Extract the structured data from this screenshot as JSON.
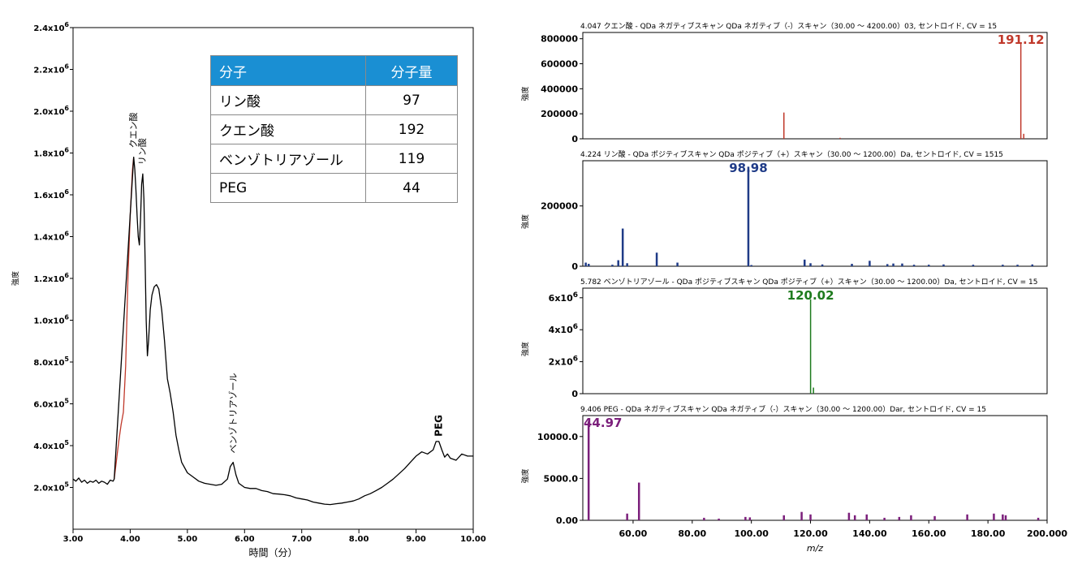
{
  "chart_data": [
    {
      "type": "line",
      "xlabel": "時間（分）",
      "ylabel": "強度",
      "xlim": [
        3.0,
        10.0
      ],
      "ylim": [
        0,
        2400000
      ],
      "xticks": [
        "3.00",
        "4.00",
        "5.00",
        "6.00",
        "7.00",
        "8.00",
        "9.00",
        "10.00"
      ],
      "yticks": [
        {
          "mant": "2.0x10",
          "exp": "5",
          "value": 200000
        },
        {
          "mant": "4.0x10",
          "exp": "5",
          "value": 400000
        },
        {
          "mant": "6.0x10",
          "exp": "5",
          "value": 600000
        },
        {
          "mant": "8.0x10",
          "exp": "5",
          "value": 800000
        },
        {
          "mant": "1.0x10",
          "exp": "6",
          "value": 1000000
        },
        {
          "mant": "1.2x10",
          "exp": "6",
          "value": 1200000
        },
        {
          "mant": "1.4x10",
          "exp": "6",
          "value": 1400000
        },
        {
          "mant": "1.6x10",
          "exp": "6",
          "value": 1600000
        },
        {
          "mant": "1.8x10",
          "exp": "6",
          "value": 1800000
        },
        {
          "mant": "2.0x10",
          "exp": "6",
          "value": 2000000
        },
        {
          "mant": "2.2x10",
          "exp": "6",
          "value": 2200000
        },
        {
          "mant": "2.4x10",
          "exp": "6",
          "value": 2400000
        }
      ],
      "series": [
        {
          "color": "#c0392b",
          "x": [
            3.72,
            3.76,
            3.8,
            3.84,
            3.88,
            3.92,
            3.96,
            4.0,
            4.04,
            4.06
          ],
          "y": [
            240000,
            330000,
            420000,
            500000,
            560000,
            780000,
            1200000,
            1500000,
            1720000,
            1780000
          ]
        },
        {
          "color": "#000000",
          "x": [
            3.0,
            3.05,
            3.1,
            3.15,
            3.2,
            3.25,
            3.3,
            3.35,
            3.4,
            3.45,
            3.5,
            3.55,
            3.6,
            3.65,
            3.7,
            3.72,
            4.06,
            4.08,
            4.1,
            4.12,
            4.14,
            4.16,
            4.18,
            4.2,
            4.22,
            4.24,
            4.26,
            4.28,
            4.3,
            4.32,
            4.35,
            4.38,
            4.42,
            4.46,
            4.5,
            4.55,
            4.6,
            4.65,
            4.7,
            4.75,
            4.8,
            4.85,
            4.9,
            5.0,
            5.1,
            5.2,
            5.3,
            5.4,
            5.5,
            5.6,
            5.7,
            5.75,
            5.8,
            5.85,
            5.9,
            6.0,
            6.1,
            6.2,
            6.3,
            6.4,
            6.5,
            6.6,
            6.7,
            6.8,
            6.9,
            7.0,
            7.1,
            7.2,
            7.3,
            7.4,
            7.5,
            7.6,
            7.7,
            7.8,
            7.9,
            8.0,
            8.1,
            8.2,
            8.3,
            8.4,
            8.5,
            8.6,
            8.7,
            8.8,
            8.9,
            9.0,
            9.1,
            9.2,
            9.3,
            9.35,
            9.4,
            9.45,
            9.5,
            9.55,
            9.6,
            9.7,
            9.8,
            9.9,
            10.0
          ],
          "y": [
            240000,
            230000,
            245000,
            225000,
            235000,
            220000,
            230000,
            225000,
            235000,
            220000,
            230000,
            225000,
            215000,
            235000,
            230000,
            240000,
            1780000,
            1720000,
            1620000,
            1500000,
            1400000,
            1360000,
            1480000,
            1650000,
            1700000,
            1580000,
            1300000,
            1000000,
            830000,
            900000,
            1050000,
            1120000,
            1160000,
            1170000,
            1150000,
            1050000,
            900000,
            720000,
            650000,
            560000,
            450000,
            380000,
            320000,
            270000,
            250000,
            230000,
            220000,
            215000,
            210000,
            215000,
            240000,
            300000,
            320000,
            260000,
            220000,
            200000,
            195000,
            195000,
            185000,
            180000,
            170000,
            168000,
            165000,
            160000,
            150000,
            145000,
            140000,
            130000,
            125000,
            120000,
            118000,
            122000,
            125000,
            130000,
            135000,
            145000,
            160000,
            170000,
            185000,
            200000,
            220000,
            240000,
            265000,
            290000,
            320000,
            350000,
            370000,
            360000,
            380000,
            420000,
            420000,
            380000,
            345000,
            360000,
            340000,
            330000,
            360000,
            350000,
            350000
          ]
        }
      ],
      "annotations": [
        {
          "text": "クエン酸",
          "x": 4.05,
          "y": 1800000
        },
        {
          "text": "リン酸",
          "x": 4.21,
          "y": 1720000
        },
        {
          "text": "ベンゾトリアゾール",
          "x": 5.8,
          "y": 340000
        },
        {
          "text": "PEG",
          "x": 9.4,
          "y": 420000
        }
      ]
    },
    {
      "type": "bar",
      "title": "4.047 クエン酸 - QDa ネガティブスキャン QDa ネガティブ（-）スキャン（30.00 ～ 4200.00）03, セントロイド, CV = 15",
      "ylabel": "強度",
      "color": "#c0392b",
      "xlim": [
        43,
        200
      ],
      "ylim": [
        0,
        850000
      ],
      "yticks": [
        {
          "label": "0",
          "value": 0
        },
        {
          "label": "200000",
          "value": 200000
        },
        {
          "label": "400000",
          "value": 400000
        },
        {
          "label": "600000",
          "value": 600000
        },
        {
          "label": "800000",
          "value": 800000
        }
      ],
      "peaks": [
        [
          111.0,
          210000
        ],
        [
          130.0,
          8000
        ],
        [
          191.12,
          760000
        ],
        [
          192.1,
          40000
        ]
      ],
      "label": "191.12",
      "label_mz": 191.12,
      "label_y": 760000
    },
    {
      "type": "bar",
      "title": "4.224 リン酸 - QDa ポジティブスキャン QDa ポジティブ（+）スキャン（30.00 ～ 1200.00）Da, セントロイド, CV = 1515",
      "ylabel": "強度",
      "color": "#1f3b87",
      "xlim": [
        43,
        200
      ],
      "ylim": [
        0,
        350000
      ],
      "yticks": [
        {
          "label": "0",
          "value": 0
        },
        {
          "label": "200000",
          "value": 200000
        }
      ],
      "peaks": [
        [
          44.0,
          12000
        ],
        [
          45.0,
          8000
        ],
        [
          53.0,
          5000
        ],
        [
          55.0,
          20000
        ],
        [
          56.5,
          125000
        ],
        [
          58.0,
          10000
        ],
        [
          68.0,
          45000
        ],
        [
          75.0,
          12000
        ],
        [
          98.98,
          330000
        ],
        [
          100.0,
          4000
        ],
        [
          118.0,
          22000
        ],
        [
          120.0,
          10000
        ],
        [
          124.0,
          6000
        ],
        [
          134.0,
          8000
        ],
        [
          140.0,
          18000
        ],
        [
          146.0,
          7000
        ],
        [
          148.0,
          9000
        ],
        [
          151.0,
          9000
        ],
        [
          155.0,
          5000
        ],
        [
          160.0,
          5000
        ],
        [
          165.0,
          6000
        ],
        [
          175.0,
          5000
        ],
        [
          185.0,
          5000
        ],
        [
          190.0,
          5000
        ],
        [
          195.0,
          6000
        ]
      ],
      "label": "98.98",
      "label_mz": 98.98,
      "label_y": 330000
    },
    {
      "type": "bar",
      "title": "5.782 ベンゾトリアゾール - QDa ポジティブスキャン QDa ポジティブ（+）スキャン（30.00 ～ 1200.00）Da, セントロイド, CV = 15",
      "ylabel": "強度",
      "color": "#1e7b1e",
      "xlim": [
        43,
        200
      ],
      "ylim": [
        0,
        6600000
      ],
      "yticks": [
        {
          "label": "0",
          "value": 0,
          "exp": ""
        },
        {
          "label": "2x10",
          "value": 2000000,
          "exp": "6"
        },
        {
          "label": "4x10",
          "value": 4000000,
          "exp": "6"
        },
        {
          "label": "6x10",
          "value": 6000000,
          "exp": "6"
        }
      ],
      "peaks": [
        [
          120.02,
          5900000
        ],
        [
          121.0,
          380000
        ]
      ],
      "label": "120.02",
      "label_mz": 120.02,
      "label_y": 5900000
    },
    {
      "type": "bar",
      "title": "9.406 PEG - QDa ネガティブスキャン QDa ネガティブ（-）スキャン（30.00 ～ 1200.00）Dar, セントロイド, CV = 15",
      "ylabel": "強度",
      "xlabel": "m/z",
      "color": "#7b1f7b",
      "xlim": [
        43,
        200
      ],
      "ylim": [
        0,
        12500
      ],
      "xticks": [
        "60.00",
        "80.00",
        "100.00",
        "120.00",
        "140.00",
        "160.00",
        "180.00",
        "200.000"
      ],
      "xtick_values": [
        60,
        80,
        100,
        120,
        140,
        160,
        180,
        200
      ],
      "yticks": [
        {
          "label": "0.00",
          "value": 0
        },
        {
          "label": "5000.0",
          "value": 5000
        },
        {
          "label": "10000.0",
          "value": 10000
        }
      ],
      "peaks": [
        [
          44.97,
          11800
        ],
        [
          58.0,
          800
        ],
        [
          62.0,
          4500
        ],
        [
          84.0,
          300
        ],
        [
          89.0,
          200
        ],
        [
          98.0,
          400
        ],
        [
          99.5,
          350
        ],
        [
          111.0,
          600
        ],
        [
          117.0,
          1000
        ],
        [
          120.0,
          700
        ],
        [
          133.0,
          900
        ],
        [
          135.0,
          600
        ],
        [
          139.0,
          700
        ],
        [
          145.0,
          300
        ],
        [
          150.0,
          400
        ],
        [
          154.0,
          600
        ],
        [
          162.0,
          500
        ],
        [
          173.0,
          700
        ],
        [
          182.0,
          800
        ],
        [
          185.0,
          700
        ],
        [
          186.0,
          600
        ],
        [
          197.0,
          300
        ]
      ],
      "label": "44.97",
      "label_mz": 44.97,
      "label_y": 11800
    }
  ],
  "table": {
    "headers": [
      "分子",
      "分子量"
    ],
    "rows": [
      [
        "リン酸",
        "97"
      ],
      [
        "クエン酸",
        "192"
      ],
      [
        "ベンゾトリアゾール",
        "119"
      ],
      [
        "PEG",
        "44"
      ]
    ]
  }
}
